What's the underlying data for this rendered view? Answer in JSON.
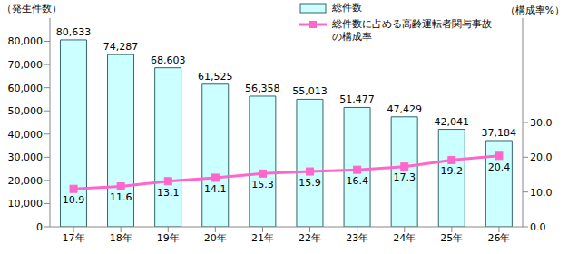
{
  "chart_data": {
    "type": "bar",
    "categories": [
      "17年",
      "18年",
      "19年",
      "20年",
      "21年",
      "22年",
      "23年",
      "24年",
      "25年",
      "26年"
    ],
    "series": [
      {
        "name": "総件数",
        "type": "bar",
        "color": "#ccffff",
        "values": [
          80633,
          74287,
          68603,
          61525,
          56358,
          55013,
          51477,
          47429,
          42041,
          37184
        ],
        "value_labels": [
          "80,633",
          "74,287",
          "68,603",
          "61,525",
          "56,358",
          "55,013",
          "51,477",
          "47,429",
          "42,041",
          "37,184"
        ]
      },
      {
        "name": "総件数に占める高齢運転者関与事故の構成率",
        "type": "line",
        "color": "#ff66cc",
        "marker": "square",
        "axis": "y2",
        "values": [
          10.9,
          11.6,
          13.1,
          14.1,
          15.3,
          15.9,
          16.4,
          17.3,
          19.2,
          20.4
        ]
      }
    ],
    "y_label": "（発生件数）",
    "y2_label": "（構成率%）",
    "ylim": [
      0,
      90000
    ],
    "yticks": [
      0,
      {
        "value": 10000,
        "label": "10,000"
      },
      {
        "value": 20000,
        "label": "20,000"
      },
      {
        "value": 30000,
        "label": "30,000"
      },
      {
        "value": 40000,
        "label": "40,000"
      },
      {
        "value": 50000,
        "label": "50,000"
      },
      {
        "value": 60000,
        "label": "60,000"
      },
      {
        "value": 70000,
        "label": "70,000"
      },
      {
        "value": 80000,
        "label": "80,000"
      }
    ],
    "y2lim": [
      0,
      60
    ],
    "y2ticks": [
      {
        "value": 0,
        "label": "0.0"
      },
      {
        "value": 10,
        "label": "10.0"
      },
      {
        "value": 20,
        "label": "20.0"
      },
      {
        "value": 30,
        "label": "30.0"
      }
    ],
    "data_labels": true,
    "legend": "top right"
  }
}
